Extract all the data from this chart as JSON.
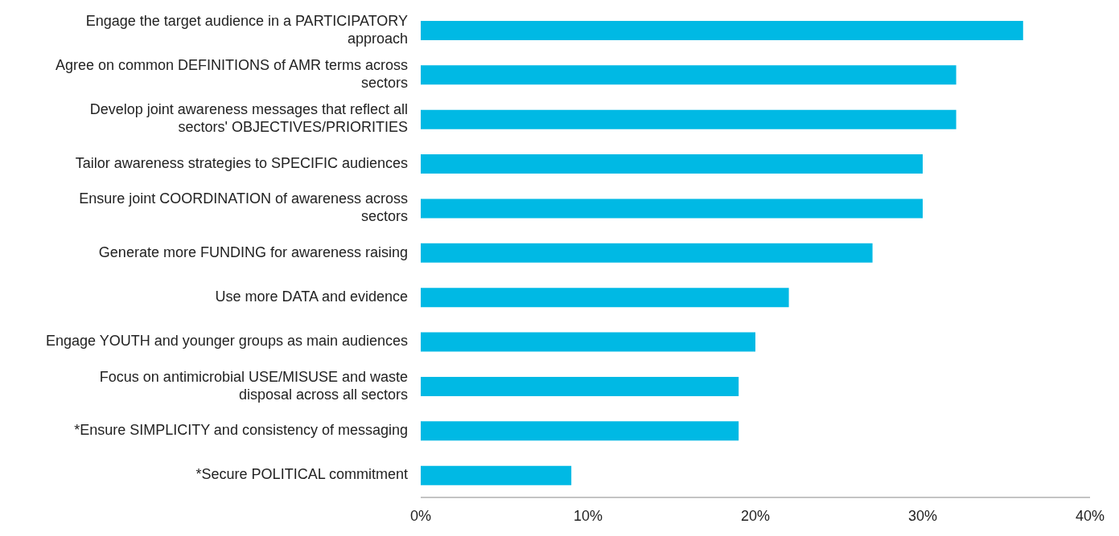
{
  "chart_data": {
    "type": "bar",
    "orientation": "horizontal",
    "categories": [
      "Engage the target audience in a PARTICIPATORY approach",
      "Agree on common DEFINITIONS of AMR terms across sectors",
      "Develop joint awareness messages that reflect all sectors' OBJECTIVES/PRIORITIES",
      "Tailor awareness strategies to SPECIFIC audiences",
      "Ensure joint COORDINATION of awareness across sectors",
      "Generate more FUNDING for awareness raising",
      "Use more DATA and evidence",
      "Engage YOUTH and younger groups as main audiences",
      "Focus on antimicrobial USE/MISUSE and waste disposal across all sectors",
      "*Ensure SIMPLICITY and consistency of messaging",
      "*Secure POLITICAL commitment"
    ],
    "values": [
      36,
      32,
      32,
      30,
      30,
      27,
      22,
      20,
      19,
      19,
      9
    ],
    "color": "#00b9e4",
    "xlim": [
      0,
      40
    ],
    "xticks": [
      {
        "value": 0,
        "label": "0%"
      },
      {
        "value": 10,
        "label": "10%"
      },
      {
        "value": 20,
        "label": "20%"
      },
      {
        "value": 30,
        "label": "30%"
      },
      {
        "value": 40,
        "label": "40%"
      }
    ],
    "grid": false,
    "legend": false
  }
}
